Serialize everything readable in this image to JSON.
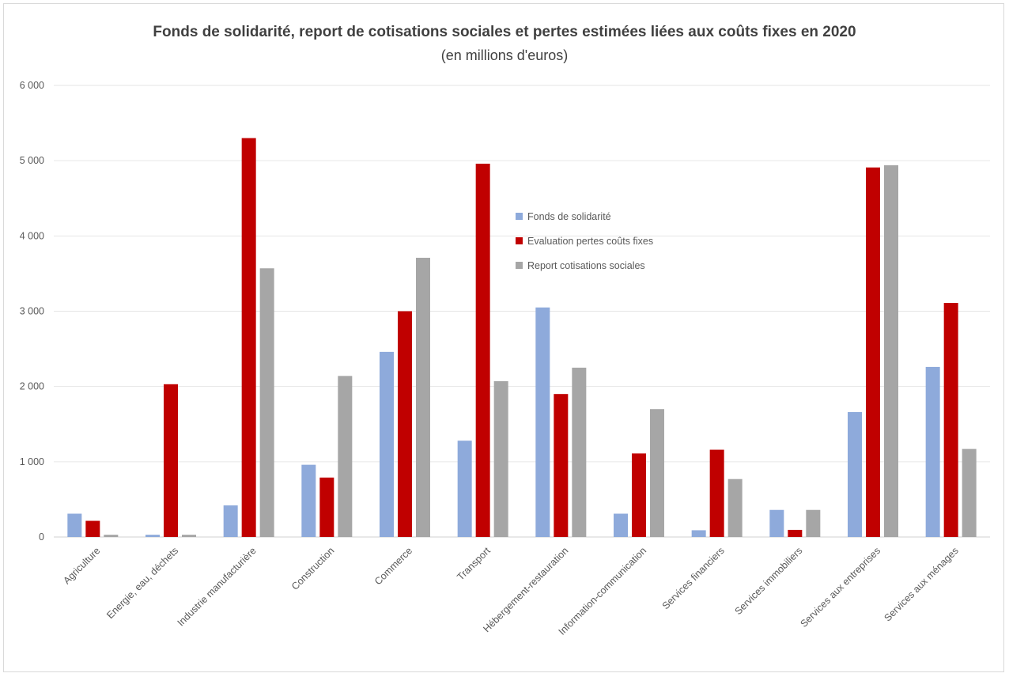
{
  "chart_data": {
    "type": "bar",
    "title": "Fonds de solidarité, report de cotisations sociales et pertes estimées liées aux coûts fixes en 2020",
    "subtitle": "(en millions d'euros)",
    "categories": [
      "Agriculture",
      "Energie, eau, déchets",
      "Industrie manufacturière",
      "Construction",
      "Commerce",
      "Transport",
      "Hébergement-restauration",
      "Information-communication",
      "Services financiers",
      "Services immobiliers",
      "Services aux entreprises",
      "Services aux ménages"
    ],
    "series": [
      {
        "name": "Fonds de solidarité",
        "color": "#8eaadb",
        "values": [
          310,
          30,
          420,
          960,
          2460,
          1280,
          3050,
          310,
          90,
          360,
          1660,
          2260
        ]
      },
      {
        "name": "Evaluation pertes coûts fixes",
        "color": "#c00000",
        "values": [
          215,
          2030,
          5300,
          790,
          3000,
          4960,
          1900,
          1110,
          1160,
          95,
          4910,
          3110
        ]
      },
      {
        "name": "Report cotisations sociales",
        "color": "#a6a6a6",
        "values": [
          30,
          30,
          3570,
          2140,
          3710,
          2070,
          2250,
          1700,
          770,
          360,
          4940,
          1170
        ]
      }
    ],
    "yticks": [
      "0",
      "1 000",
      "2 000",
      "3 000",
      "4 000",
      "5 000",
      "6 000"
    ],
    "ylim": [
      0,
      6000
    ],
    "grid": true,
    "legend_position": "center"
  }
}
